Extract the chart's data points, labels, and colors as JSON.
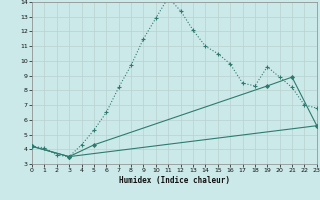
{
  "xlabel": "Humidex (Indice chaleur)",
  "bg_color": "#cce9e9",
  "grid_color": "#b0d4d4",
  "line_color": "#2d7b6e",
  "xlim": [
    0,
    23
  ],
  "ylim": [
    3,
    14
  ],
  "xticks": [
    0,
    1,
    2,
    3,
    4,
    5,
    6,
    7,
    8,
    9,
    10,
    11,
    12,
    13,
    14,
    15,
    16,
    17,
    18,
    19,
    20,
    21,
    22,
    23
  ],
  "yticks": [
    3,
    4,
    5,
    6,
    7,
    8,
    9,
    10,
    11,
    12,
    13,
    14
  ],
  "line1_x": [
    0,
    1,
    2,
    3,
    4,
    5,
    6,
    7,
    8,
    9,
    10,
    11,
    12,
    13,
    14,
    15,
    16,
    17,
    18,
    19,
    20,
    21,
    22,
    23
  ],
  "line1_y": [
    4.2,
    4.1,
    3.6,
    3.5,
    4.3,
    5.3,
    6.5,
    8.2,
    9.7,
    11.5,
    12.9,
    14.3,
    13.4,
    12.1,
    11.0,
    10.5,
    9.8,
    8.5,
    8.3,
    9.6,
    8.9,
    8.2,
    7.0,
    6.8
  ],
  "line2_x": [
    0,
    3,
    5,
    19,
    21,
    23
  ],
  "line2_y": [
    4.2,
    3.5,
    4.3,
    8.3,
    8.9,
    5.6
  ],
  "line3_x": [
    0,
    3,
    23
  ],
  "line3_y": [
    4.2,
    3.5,
    5.6
  ]
}
